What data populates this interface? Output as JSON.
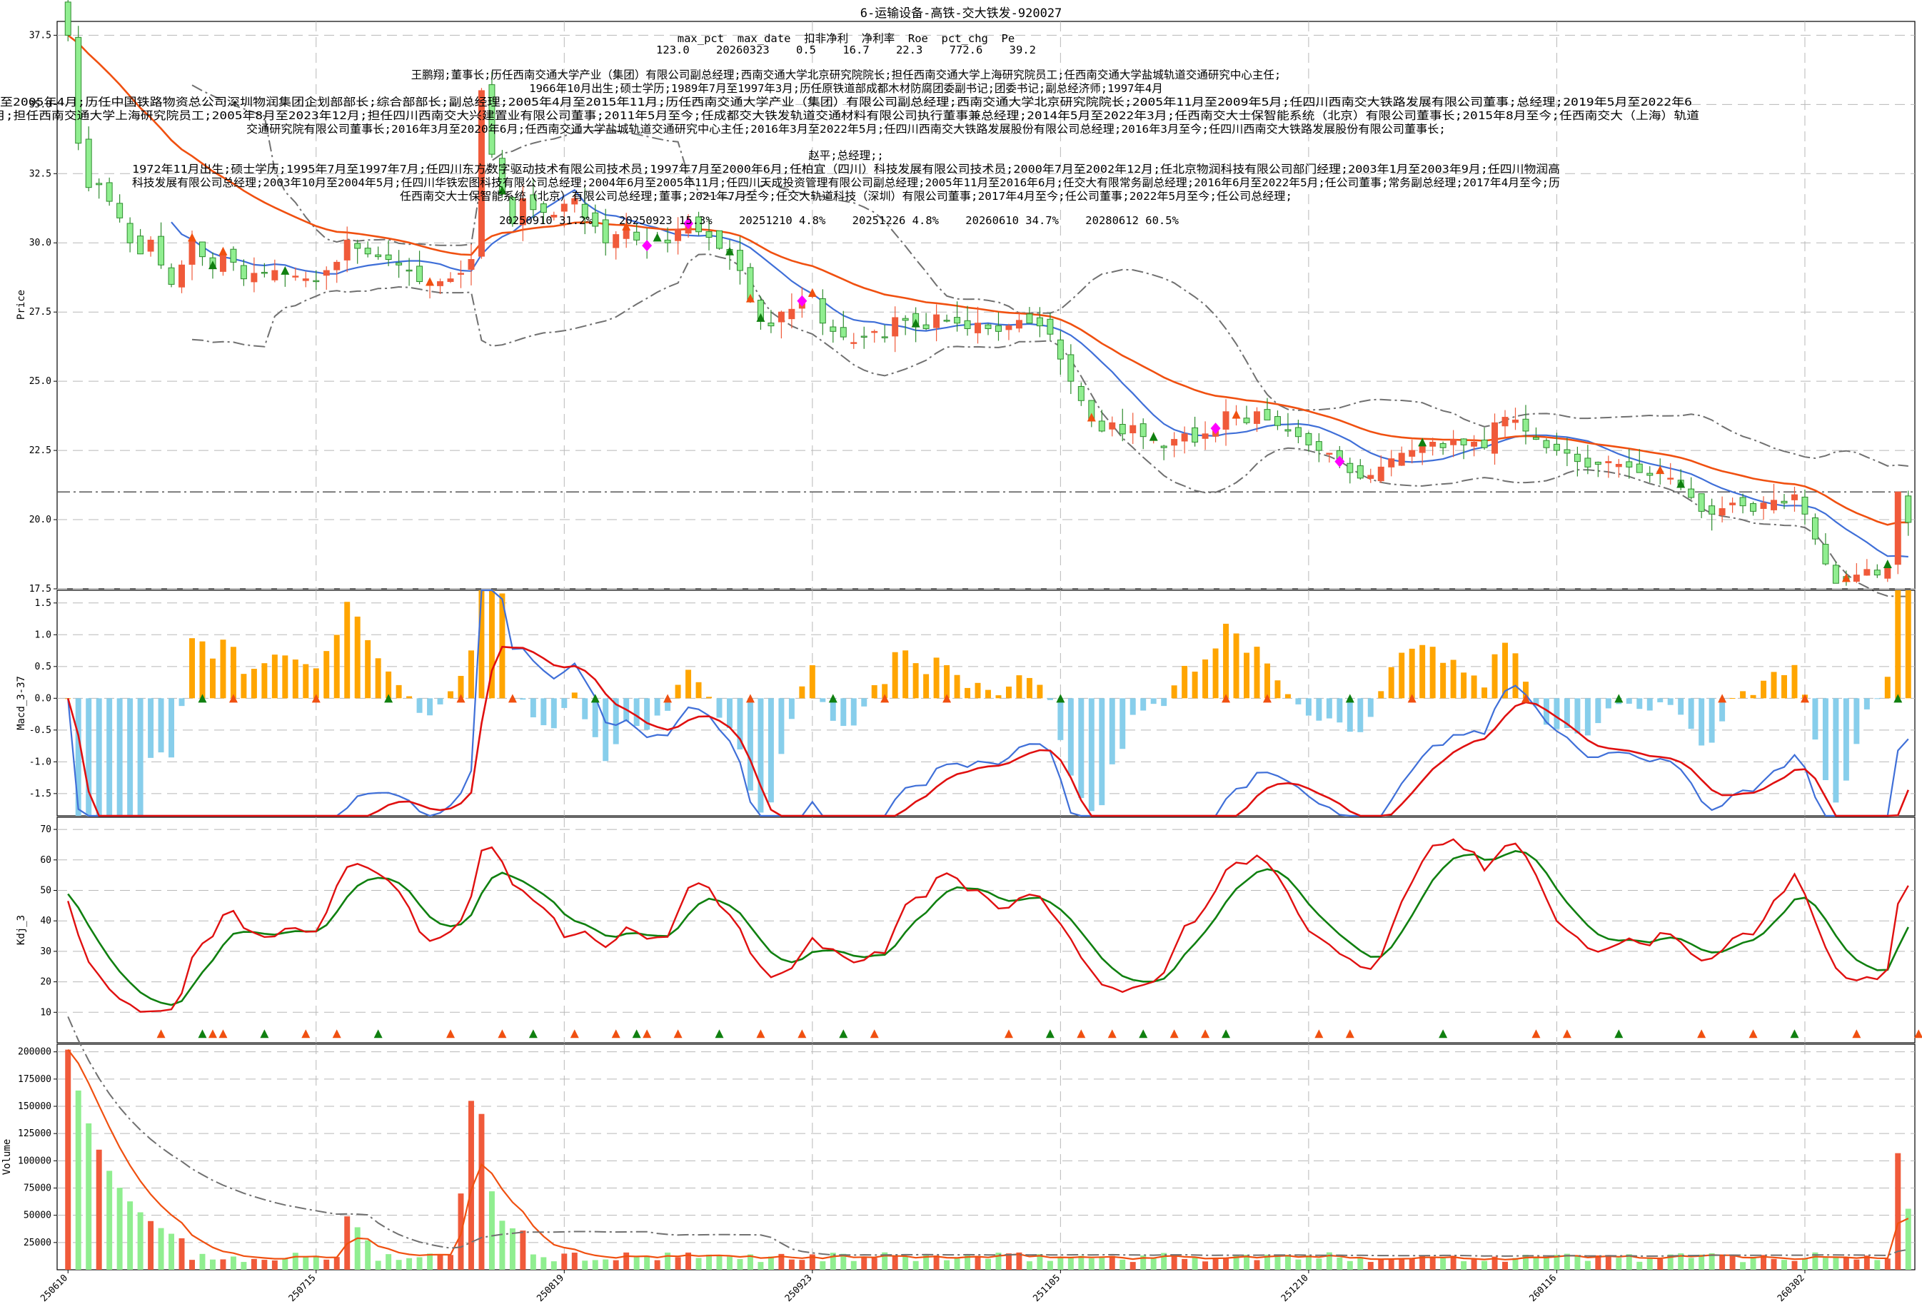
{
  "title": "6-运输设备-高铁-交大铁发-920027",
  "stats": {
    "header": "max_pct  max_date  扣非净利  净利率  Roe  pct_chg  Pe",
    "values": "123.0    20260323    0.5    16.7    22.3    772.6    39.2"
  },
  "profile_lines": [
    "王鹏翔;董事长;历任西南交通大学产业（集团）有限公司副总经理;西南交通大学北京研究院院长;担任西南交通大学上海研究院员工;任西南交通大学盐城轨道交通研究中心主任;",
    "1966年10月出生;硕士学历;1989年7月至1997年3月;历任原铁道部成都木材防腐团委副书记;团委书记;副总经济师;1997年4月",
    "至2005年4月;历任中国铁路物资总公司深圳物润集团企划部部长;综合部部长;副总经理;2005年4月至2015年11月;历任西南交通大学产业（集团）有限公司副总经理;西南交通大学北京研究院院长;2005年11月至2009年5月;任四川西南交大铁路发展有限公司董事;总经理;2019年5月至2022年6",
    "月;担任西南交通大学上海研究院员工;2005年8月至2023年12月;担任四川西南交大兴建置业有限公司董事;2011年5月至今;任成都交大铁发轨道交通材料有限公司执行董事兼总经理;2014年5月至2022年3月;任西南交大士保智能系统（北京）有限公司董事长;2015年8月至今;任西南交大（上海）轨道",
    "交通研究院有限公司董事长;2016年3月至2020年6月;任西南交通大学盐城轨道交通研究中心主任;2016年3月至2022年5月;任四川西南交大铁路发展股份有限公司总经理;2016年3月至今;任四川西南交大铁路发展股份有限公司董事长;",
    "",
    "赵平;总经理;;",
    "1972年11月出生;硕士学历;1995年7月至1997年7月;任四川东方数字驱动技术有限公司技术员;1997年7月至2000年6月;任柏宜（四川）科技发展有限公司技术员;2000年7月至2002年12月;任北京物润科技有限公司部门经理;2003年1月至2003年9月;任四川物润高",
    "科技发展有限公司总经理;2003年10月至2004年5月;任四川华铁宏图科技有限公司总经理;2004年6月至2005年11月;任四川天成投资管理有限公司副总经理;2005年11月至2016年6月;任交大有限常务副总经理;2016年6月至2022年5月;任公司董事;常务副总经理;2017年4月至今;历",
    "任西南交大士保智能系统（北京）有限公司总经理;董事;2021年7月至今;任交大轨道科技（深圳）有限公司董事;2017年4月至今;任公司董事;2022年5月至今;任公司总经理;",
    "",
    "20250910 31.2%    20250923 15.3%    20251210 4.8%    20251226 4.8%    20260610 34.7%    20280612 60.5%"
  ],
  "colors": {
    "up": "#f05a3a",
    "down": "#90ee90",
    "down_edge": "#2e8b2e",
    "ma_fast": "#3f6fd8",
    "ma_slow": "#f05010",
    "band": "#707070",
    "macd_pos": "#ffa500",
    "macd_neg": "#87ceeb",
    "dif": "#3f6fd8",
    "dea": "#e01010",
    "k": "#e01010",
    "d": "#108010",
    "marker_up": "#f05010",
    "marker_down": "#108010",
    "diamond": "#ff00ff"
  },
  "chart_data": [
    {
      "type": "candlestick",
      "name": "price",
      "ylabel": "Price",
      "ylim": [
        17.5,
        38.0
      ],
      "yticks": [
        "17.5",
        "20.0",
        "22.5",
        "25.0",
        "27.5",
        "30.0",
        "32.5",
        "35.0",
        "37.5"
      ],
      "horizontal_line": 21.0,
      "grid": true,
      "close": [
        37.5,
        33.6,
        32.0,
        32.1,
        31.5,
        30.9,
        30.0,
        29.6,
        30.1,
        29.2,
        28.5,
        29.2,
        30.1,
        29.5,
        29.1,
        29.6,
        29.3,
        28.7,
        28.9,
        28.9,
        29.0,
        28.9,
        28.8,
        28.7,
        28.6,
        29.0,
        29.3,
        30.1,
        29.8,
        29.6,
        29.5,
        29.4,
        29.2,
        29.0,
        28.6,
        28.5,
        28.6,
        28.7,
        28.9,
        29.4,
        35.5,
        33.2,
        31.8,
        30.7,
        31.6,
        31.2,
        31.1,
        31.0,
        31.4,
        31.6,
        30.9,
        30.6,
        30.0,
        30.3,
        30.5,
        30.1,
        29.9,
        30.1,
        30.0,
        30.5,
        30.7,
        30.4,
        30.2,
        29.8,
        29.6,
        29.0,
        27.9,
        27.2,
        27.0,
        27.5,
        27.6,
        27.9,
        28.1,
        27.1,
        26.8,
        26.6,
        26.4,
        26.6,
        26.8,
        26.6,
        27.3,
        27.2,
        27.0,
        26.9,
        27.4,
        27.2,
        27.1,
        26.9,
        27.1,
        26.9,
        26.8,
        27.0,
        27.2,
        27.1,
        27.0,
        26.7,
        25.8,
        25.0,
        24.3,
        23.6,
        23.2,
        23.5,
        23.1,
        23.4,
        23.0,
        22.9,
        22.6,
        22.9,
        23.1,
        22.8,
        23.1,
        23.3,
        23.9,
        23.7,
        23.5,
        23.9,
        23.6,
        23.4,
        23.2,
        23.0,
        22.7,
        22.5,
        22.4,
        22.1,
        21.7,
        21.5,
        21.6,
        21.9,
        22.2,
        22.4,
        22.5,
        22.7,
        22.8,
        22.6,
        22.9,
        22.7,
        22.8,
        22.6,
        23.5,
        23.7,
        23.6,
        23.2,
        22.9,
        22.6,
        22.5,
        22.4,
        22.1,
        21.9,
        22.0,
        22.1,
        22.0,
        21.9,
        21.7,
        21.6,
        21.7,
        21.5,
        21.2,
        20.8,
        20.3,
        20.2,
        20.4,
        20.6,
        20.5,
        20.3,
        20.6,
        20.7,
        20.6,
        20.9,
        20.2,
        19.3,
        18.4,
        17.7,
        17.8,
        18.0,
        18.2,
        18.0,
        18.3,
        21.0,
        19.9
      ],
      "series_lines": [
        "ma_fast",
        "ma_slow",
        "band_upper",
        "band_lower"
      ]
    },
    {
      "type": "bar+line",
      "name": "macd",
      "ylabel": "Macd_3-37",
      "ylim": [
        -1.85,
        1.7
      ],
      "yticks": [
        "-1.5",
        "-1.0",
        "-0.5",
        "0.0",
        "0.5",
        "1.0",
        "1.5"
      ]
    },
    {
      "type": "line",
      "name": "kdj",
      "ylabel": "Kdj_3",
      "ylim": [
        0,
        74
      ],
      "yticks": [
        "10",
        "20",
        "30",
        "40",
        "50",
        "60",
        "70"
      ]
    },
    {
      "type": "bar",
      "name": "volume",
      "ylabel": "Volume",
      "ylim": [
        0,
        207000
      ],
      "yticks": [
        "25000",
        "50000",
        "75000",
        "100000",
        "125000",
        "150000",
        "175000",
        "200000"
      ],
      "xticks": [
        "250610",
        "250715",
        "250819",
        "250923",
        "251105",
        "251210",
        "260116",
        "260302"
      ]
    }
  ]
}
